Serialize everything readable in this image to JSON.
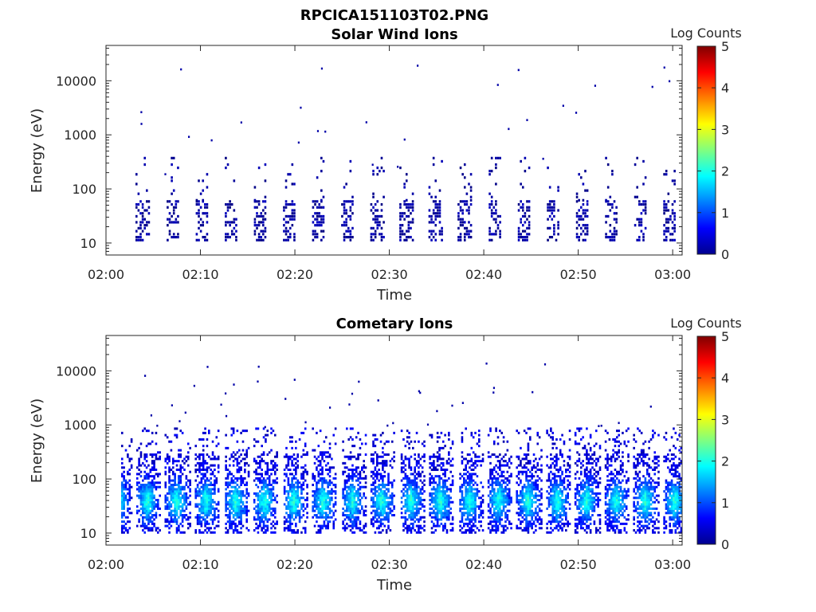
{
  "figure_title": "RPCICA151103T02.PNG",
  "chart_data": [
    {
      "type": "heatmap",
      "title": "Solar Wind Ions",
      "xlabel": "Time",
      "ylabel": "Energy (eV)",
      "x_ticks": [
        "02:00",
        "02:10",
        "02:20",
        "02:30",
        "02:40",
        "02:50",
        "03:00"
      ],
      "y_ticks": [
        "10",
        "100",
        "1000",
        "10000"
      ],
      "y_scale": "log",
      "ylim": [
        6,
        45000
      ],
      "xlim": [
        "02:00",
        "03:01"
      ],
      "colorbar": {
        "label": "Log Counts",
        "ticks": [
          "0",
          "1",
          "2",
          "3",
          "4",
          "5"
        ],
        "range": [
          0,
          5
        ],
        "colormap": "jet"
      },
      "activity": "sparse dark-blue pixels (log counts ~0-0.3) mostly at 10-60 eV in bursts every ~2-3 min, scattered points up to ~20000 eV"
    },
    {
      "type": "heatmap",
      "title": "Cometary Ions",
      "xlabel": "Time",
      "ylabel": "Energy (eV)",
      "x_ticks": [
        "02:00",
        "02:10",
        "02:20",
        "02:30",
        "02:40",
        "02:50",
        "03:00"
      ],
      "y_ticks": [
        "10",
        "100",
        "1000",
        "10000"
      ],
      "y_scale": "log",
      "ylim": [
        6,
        45000
      ],
      "xlim": [
        "02:00",
        "03:01"
      ],
      "colorbar": {
        "label": "Log Counts",
        "ticks": [
          "0",
          "1",
          "2",
          "3",
          "4",
          "5"
        ],
        "range": [
          0,
          5
        ],
        "colormap": "jet"
      },
      "activity": "periodic bursts every ~3 min spanning 10-1000 eV, peak log counts ~1.5-2 near 30-45 eV"
    }
  ]
}
